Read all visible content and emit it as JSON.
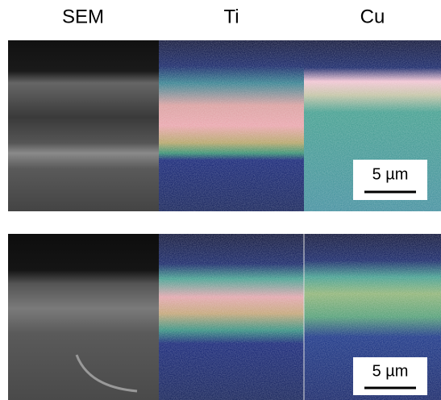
{
  "columns": [
    "SEM",
    "Ti",
    "Cu"
  ],
  "panels": [
    {
      "scale_bar": "5 µm"
    },
    {
      "scale_bar": "5 µm"
    }
  ]
}
